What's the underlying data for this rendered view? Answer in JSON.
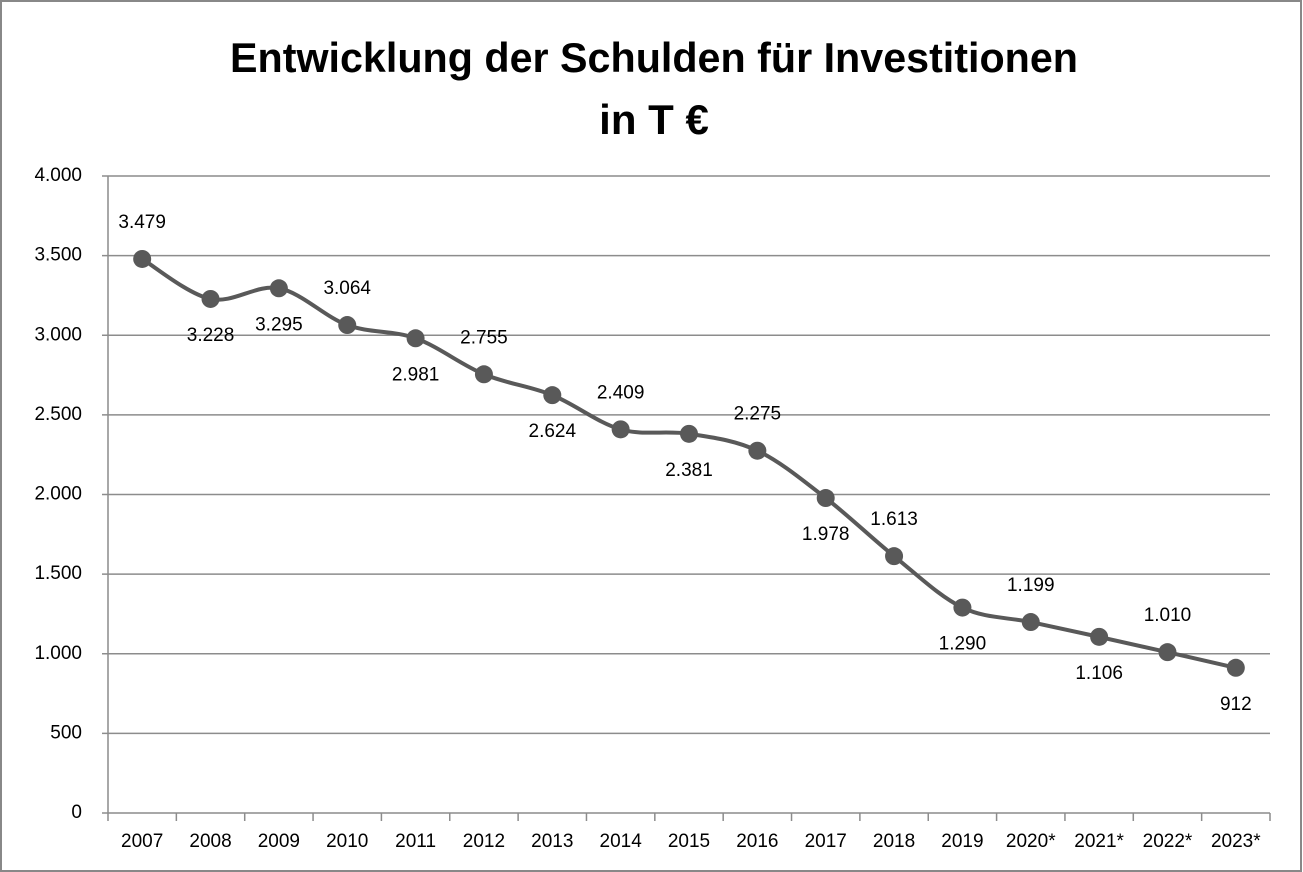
{
  "chart_data": {
    "type": "line",
    "title": [
      "Entwicklung der Schulden für Investitionen",
      "in T €"
    ],
    "categories": [
      "2007",
      "2008",
      "2009",
      "2010",
      "2011",
      "2012",
      "2013",
      "2014",
      "2015",
      "2016",
      "2017",
      "2018",
      "2019",
      "2020*",
      "2021*",
      "2022*",
      "2023*"
    ],
    "series": [
      {
        "color": "#595959",
        "values": [
          3479,
          3228,
          3295,
          3064,
          2981,
          2755,
          2624,
          2409,
          2381,
          2275,
          1978,
          1613,
          1290,
          1199,
          1106,
          1010,
          912
        ],
        "value_labels": [
          "3.479",
          "3.228",
          "3.295",
          "3.064",
          "2.981",
          "2.755",
          "2.624",
          "2.409",
          "2.381",
          "2.275",
          "1.978",
          "1.613",
          "1.290",
          "1.199",
          "1.106",
          "1.010",
          "912"
        ]
      }
    ],
    "ylim": [
      0,
      4000
    ],
    "yticks": [
      0,
      {
        "value": 500,
        "label": "500"
      },
      {
        "value": 1000,
        "label": "1.000"
      },
      {
        "value": 1500,
        "label": "1.500"
      },
      {
        "value": 2000,
        "label": "2.000"
      },
      {
        "value": 2500,
        "label": "2.500"
      },
      {
        "value": 3000,
        "label": "3.000"
      },
      {
        "value": 3500,
        "label": "3.500"
      },
      {
        "value": 4000,
        "label": "4.000"
      }
    ],
    "grid": true,
    "smooth": true
  }
}
